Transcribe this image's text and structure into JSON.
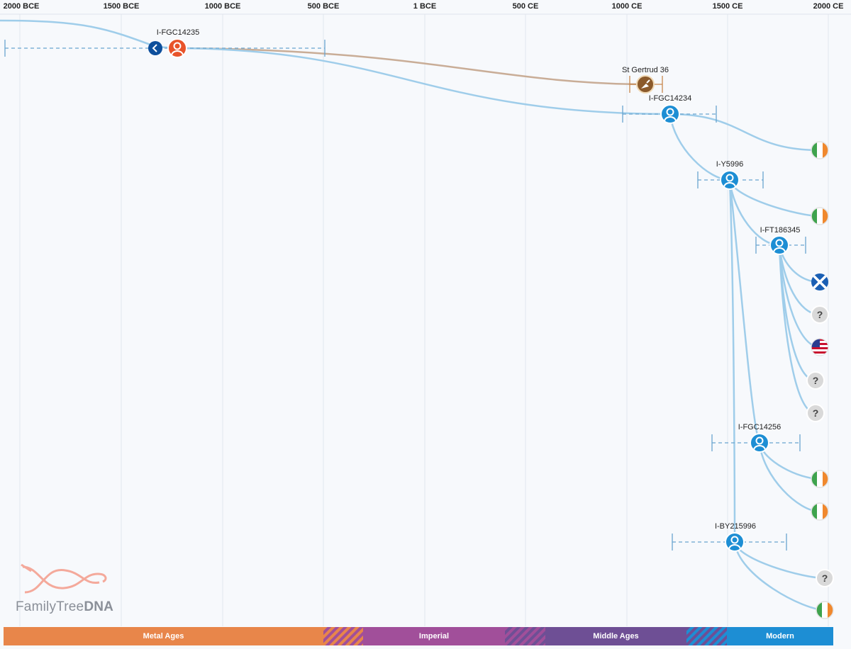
{
  "timeline": {
    "axis_labels": [
      "2000 BCE",
      "1500 BCE",
      "1000 BCE",
      "500 BCE",
      "1 BCE",
      "500 CE",
      "1000 CE",
      "1500 CE",
      "2000 CE"
    ]
  },
  "nodes": {
    "fgc14235": {
      "label": "I-FGC14235",
      "type": "person-selected"
    },
    "st_gertrud": {
      "label": "St Gertrud 36",
      "type": "ancient-sample"
    },
    "fgc14234": {
      "label": "I-FGC14234",
      "type": "person"
    },
    "y5996": {
      "label": "I-Y5996",
      "type": "person"
    },
    "ft186345": {
      "label": "I-FT186345",
      "type": "person"
    },
    "fgc14256": {
      "label": "I-FGC14256",
      "type": "person"
    },
    "by215996": {
      "label": "I-BY215996",
      "type": "person"
    }
  },
  "leaves": [
    {
      "name": "leaf-ireland-1",
      "country": "Ireland",
      "icon": "ireland-flag-icon"
    },
    {
      "name": "leaf-ireland-2",
      "country": "Ireland",
      "icon": "ireland-flag-icon"
    },
    {
      "name": "leaf-scotland",
      "country": "Scotland",
      "icon": "scotland-flag-icon"
    },
    {
      "name": "leaf-unknown-1",
      "country": "Unknown",
      "icon": "unknown-country-icon",
      "glyph": "?"
    },
    {
      "name": "leaf-usa",
      "country": "United States",
      "icon": "usa-flag-icon"
    },
    {
      "name": "leaf-unknown-2",
      "country": "Unknown",
      "icon": "unknown-country-icon",
      "glyph": "?"
    },
    {
      "name": "leaf-unknown-3",
      "country": "Unknown",
      "icon": "unknown-country-icon",
      "glyph": "?"
    },
    {
      "name": "leaf-ireland-3",
      "country": "Ireland",
      "icon": "ireland-flag-icon"
    },
    {
      "name": "leaf-ireland-4",
      "country": "Ireland",
      "icon": "ireland-flag-icon"
    },
    {
      "name": "leaf-unknown-4",
      "country": "Unknown",
      "icon": "unknown-country-icon",
      "glyph": "?"
    },
    {
      "name": "leaf-ireland-5",
      "country": "Ireland",
      "icon": "ireland-flag-icon"
    }
  ],
  "eras": [
    {
      "label": "Metal Ages",
      "color": "#e8864a"
    },
    {
      "label": "Imperial",
      "color": "#a14f9a"
    },
    {
      "label": "Middle Ages",
      "color": "#6e4f95"
    },
    {
      "label": "Modern",
      "color": "#1d8ed4"
    }
  ],
  "colors": {
    "branch": "#9fcdea",
    "ancient_branch": "#c9ad97",
    "person_node": "#1d8ed4",
    "selected_node": "#e8532a",
    "ancient_node": "#8b5a2b",
    "back_button": "#0d4f9c",
    "error_bar": "#6aa5cf"
  },
  "logo": {
    "brand_light": "FamilyTree",
    "brand_bold": "DNA"
  },
  "controls": {
    "back_icon": "chevron-left-icon"
  }
}
